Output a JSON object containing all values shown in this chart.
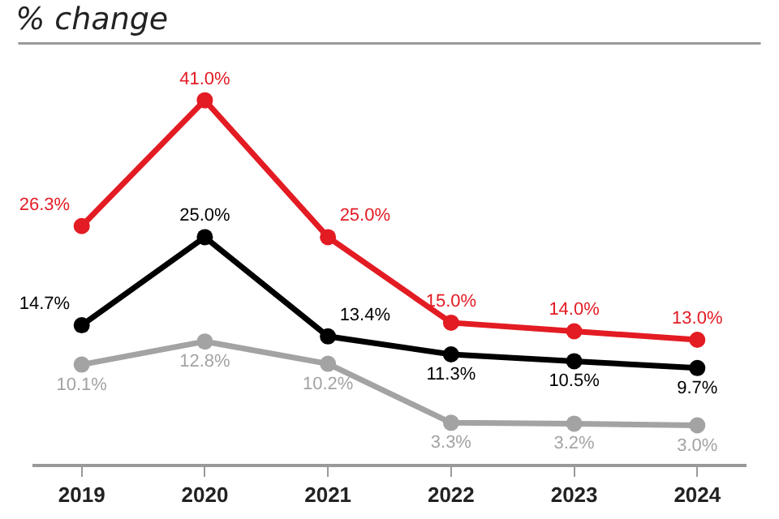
{
  "chart_data": {
    "type": "line",
    "title": "% change",
    "categories": [
      "2019",
      "2020",
      "2021",
      "2022",
      "2023",
      "2024"
    ],
    "series": [
      {
        "color": "#e31b23",
        "values": [
          26.3,
          41.0,
          25.0,
          15.0,
          14.0,
          13.0
        ],
        "value_labels": [
          "26.3%",
          "41.0%",
          "25.0%",
          "15.0%",
          "14.0%",
          "13.0%"
        ]
      },
      {
        "color": "#000000",
        "values": [
          14.7,
          25.0,
          13.4,
          11.3,
          10.5,
          9.7
        ],
        "value_labels": [
          "14.7%",
          "25.0%",
          "13.4%",
          "11.3%",
          "10.5%",
          "9.7%"
        ]
      },
      {
        "color": "#a3a3a3",
        "values": [
          10.1,
          12.8,
          10.2,
          3.3,
          3.2,
          3.0
        ],
        "value_labels": [
          "10.1%",
          "12.8%",
          "10.2%",
          "3.3%",
          "3.2%",
          "3.0%"
        ]
      }
    ],
    "marker": "circle",
    "line_style": "solid",
    "grid": false,
    "legend": false
  }
}
